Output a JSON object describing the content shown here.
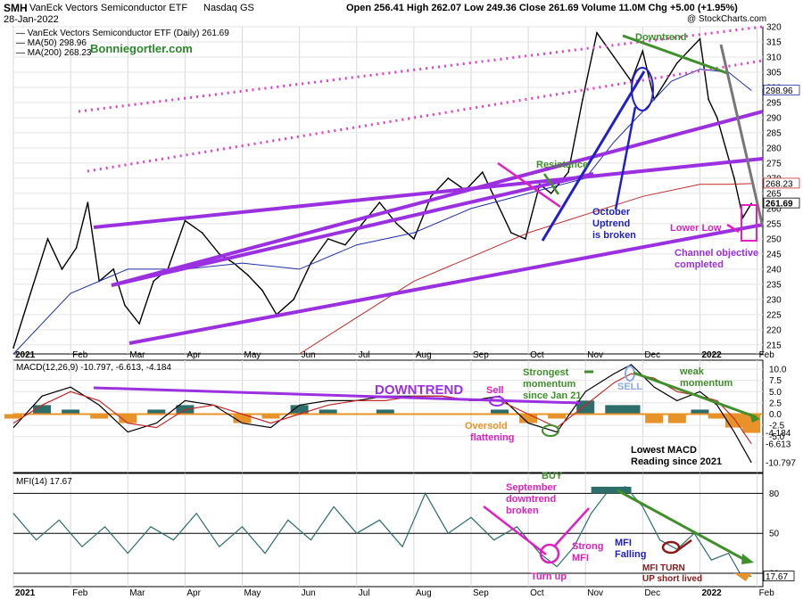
{
  "header": {
    "symbol": "SMH",
    "name": "VanEck Vectors Semiconductor ETF",
    "exchange": "Nasdaq GS",
    "date": "28-Jan-2022",
    "ohlc": "Open 256.41  High 262.07  Low 249.36  Close 261.69  Volume 11.0M  Chg +5.00 (+1.95%)",
    "watermark": "@ StockCharts.com",
    "legend_price": "VanEck Vectors Semiconductor ETF (Daily) 261.69",
    "legend_ma50": "MA(50) 298.96",
    "legend_ma200": "MA(200) 268.23",
    "site": "Bonniegortler.com",
    "macd_label": "MACD(12,26,9) -10.797, -6.613, -4.184",
    "mfi_label": "MFI(14) 17.67"
  },
  "colors": {
    "price": "#000000",
    "ma50": "#1f2fa8",
    "ma200": "#c22a2a",
    "channel": "#9b30e0",
    "dotted": "#e040c8",
    "annot_green": "#3f8f2a",
    "annot_magenta": "#e020c0",
    "annot_blue": "#2020c8",
    "hist_pos": "#2e6e6a",
    "hist_neg": "#e8932a",
    "mfi": "#2e6e6a"
  },
  "chart_data": [
    {
      "type": "line",
      "title": "VanEck Vectors Semiconductor ETF (Daily)",
      "ylim": [
        212,
        320
      ],
      "y_ticks": [
        215,
        220,
        225,
        230,
        235,
        240,
        245,
        250,
        255,
        260,
        265,
        270,
        275,
        280,
        285,
        290,
        295,
        300,
        305,
        310,
        315,
        320
      ],
      "x_labels": [
        "2021",
        "Feb",
        "Mar",
        "Apr",
        "May",
        "Jun",
        "Jul",
        "Aug",
        "Sep",
        "Oct",
        "Nov",
        "Dec",
        "2022",
        "Feb"
      ],
      "x_label_months": [
        0,
        1,
        2,
        3,
        4,
        5,
        6,
        7,
        8,
        9,
        10,
        11,
        12,
        13
      ],
      "series": [
        {
          "name": "SMH",
          "x": [
            0,
            0.3,
            0.6,
            0.85,
            1.1,
            1.3,
            1.5,
            1.75,
            1.95,
            2.2,
            2.45,
            2.7,
            3.0,
            3.3,
            3.6,
            3.85,
            4.1,
            4.35,
            4.6,
            4.9,
            5.2,
            5.5,
            5.8,
            6.1,
            6.4,
            6.7,
            7.0,
            7.3,
            7.6,
            7.9,
            8.2,
            8.45,
            8.7,
            8.95,
            9.2,
            9.4,
            9.7,
            9.95,
            10.2,
            10.5,
            10.8,
            11.0,
            11.2,
            11.4,
            11.6,
            11.8,
            12.0,
            12.15,
            12.3,
            12.45,
            12.6,
            12.75,
            12.9
          ],
          "values": [
            214,
            232,
            250,
            240,
            247,
            262,
            236,
            240,
            228,
            222,
            236,
            240,
            256,
            252,
            245,
            242,
            238,
            233,
            225,
            230,
            242,
            250,
            248,
            255,
            262,
            255,
            250,
            264,
            270,
            266,
            272,
            262,
            252,
            250,
            268,
            265,
            272,
            296,
            318,
            310,
            302,
            312,
            296,
            302,
            308,
            312,
            316,
            296,
            290,
            280,
            270,
            257,
            261.69
          ]
        },
        {
          "name": "MA(50)",
          "x": [
            0,
            1,
            2,
            3,
            4,
            5,
            6,
            7,
            8,
            9,
            10,
            10.5,
            11,
            11.5,
            12,
            12.5,
            12.9
          ],
          "values": [
            212,
            232,
            240,
            240,
            242,
            240,
            248,
            252,
            260,
            265,
            270,
            282,
            292,
            302,
            306,
            305,
            298.96
          ]
        },
        {
          "name": "MA(200)",
          "x": [
            5,
            6,
            7,
            8,
            9,
            10,
            11,
            12,
            12.5,
            12.9
          ],
          "values": [
            212,
            224,
            236,
            244,
            252,
            258,
            264,
            268,
            268,
            268.23
          ]
        }
      ],
      "price_labels": [
        "298.96",
        "268.23",
        "261.69"
      ]
    },
    {
      "type": "line",
      "title": "MACD(12,26,9)",
      "ylim": [
        -13,
        12
      ],
      "y_ticks": [
        "10.0",
        "7.5",
        "5.0",
        "2.5",
        "0.0",
        "-2.5",
        "-5.0"
      ],
      "y_tick_values": [
        10,
        7.5,
        5,
        2.5,
        0,
        -2.5,
        -5
      ],
      "x_labels": [
        "2021",
        "Feb",
        "Mar",
        "Apr",
        "May",
        "Jun",
        "Jul",
        "Aug",
        "Sep",
        "Oct",
        "Nov",
        "Dec",
        "2022",
        "Feb"
      ],
      "x_label_months": [
        0,
        1,
        2,
        3,
        4,
        5,
        6,
        7,
        8,
        9,
        10,
        11,
        12,
        13
      ],
      "series": [
        {
          "name": "MACD",
          "x": [
            0,
            0.5,
            1,
            1.5,
            2,
            2.5,
            3,
            3.5,
            4,
            4.5,
            5,
            5.5,
            6,
            6.5,
            7,
            7.5,
            8,
            8.5,
            9,
            9.5,
            10,
            10.5,
            10.8,
            11.2,
            11.6,
            12,
            12.3,
            12.6,
            12.9
          ],
          "values": [
            -3,
            4,
            6,
            2,
            -4,
            -2,
            3,
            2,
            -2,
            -3,
            2,
            3,
            3,
            4,
            4,
            4,
            3,
            4,
            -2,
            -4,
            5,
            9,
            11,
            6,
            3,
            5,
            2,
            -4,
            -10.797
          ]
        },
        {
          "name": "Signal",
          "x": [
            0,
            0.5,
            1,
            1.5,
            2,
            2.5,
            3,
            3.5,
            4,
            4.5,
            5,
            5.5,
            6,
            6.5,
            7,
            7.5,
            8,
            8.5,
            9,
            9.5,
            10,
            10.5,
            10.8,
            11.2,
            11.6,
            12,
            12.3,
            12.6,
            12.9
          ],
          "values": [
            -2,
            2,
            5,
            3,
            -2,
            -3,
            1,
            2,
            0,
            -2,
            0,
            2,
            3,
            3,
            4,
            4,
            3,
            3,
            0,
            -3,
            2,
            7,
            9,
            8,
            5,
            4,
            3,
            -1,
            -6.613
          ]
        }
      ],
      "histogram": {
        "x": [
          0,
          0.5,
          1,
          1.5,
          2,
          2.5,
          3,
          3.5,
          4,
          4.5,
          5,
          5.5,
          6,
          6.5,
          7,
          7.5,
          8,
          8.5,
          9,
          9.5,
          10,
          10.5,
          10.8,
          11.2,
          11.6,
          12,
          12.3,
          12.6,
          12.9
        ],
        "values": [
          -1,
          2,
          1,
          -1,
          -2,
          1,
          2,
          0,
          -2,
          -1,
          2,
          1,
          0,
          1,
          0,
          0,
          0,
          1,
          -2,
          -1,
          3,
          2,
          2,
          -2,
          -2,
          1,
          -1,
          -3,
          -4.184
        ]
      },
      "value_labels": [
        "-4.184",
        "-6.613",
        "-10.797"
      ]
    },
    {
      "type": "line",
      "title": "MFI(14)",
      "ylim": [
        10,
        95
      ],
      "y_ticks": [
        "80",
        "50",
        "20"
      ],
      "y_tick_values": [
        80,
        50,
        20
      ],
      "x_labels": [
        "2021",
        "Feb",
        "Mar",
        "Apr",
        "May",
        "Jun",
        "Jul",
        "Aug",
        "Sep",
        "Oct",
        "Nov",
        "Dec",
        "2022",
        "Feb"
      ],
      "x_label_months": [
        0,
        1,
        2,
        3,
        4,
        5,
        6,
        7,
        8,
        9,
        10,
        11,
        12,
        13
      ],
      "series": [
        {
          "name": "MFI",
          "x": [
            0,
            0.4,
            0.8,
            1.2,
            1.6,
            2.0,
            2.4,
            2.8,
            3.2,
            3.6,
            4.0,
            4.4,
            4.8,
            5.2,
            5.6,
            6.0,
            6.4,
            6.8,
            7.2,
            7.6,
            8.0,
            8.4,
            8.8,
            9.2,
            9.5,
            9.8,
            10.1,
            10.4,
            10.7,
            11.0,
            11.3,
            11.6,
            11.9,
            12.2,
            12.5,
            12.7,
            12.9
          ],
          "values": [
            65,
            45,
            60,
            40,
            55,
            35,
            55,
            45,
            65,
            40,
            55,
            35,
            60,
            45,
            70,
            50,
            60,
            40,
            80,
            50,
            62,
            45,
            55,
            35,
            25,
            40,
            65,
            82,
            85,
            70,
            45,
            38,
            50,
            30,
            35,
            20,
            17.67
          ]
        }
      ],
      "value_labels": [
        "17.67"
      ]
    }
  ],
  "annotations": {
    "downtrend_top": "Downtrend",
    "resistance": "Resistance",
    "october_uptrend": [
      "October",
      "Uptrend",
      "is broken"
    ],
    "lower_low": "Lower Low",
    "channel_objective": [
      "Channel objective",
      "completed"
    ],
    "downtrend_macd": "DOWNTREND",
    "sell1": "Sell",
    "oversold": [
      "Oversold",
      "flattening"
    ],
    "strongest": [
      "Strongest",
      "momentum",
      "since Jan 21"
    ],
    "sell2": "SELL",
    "weak": [
      "weak",
      "momentum"
    ],
    "lowest_macd": [
      "Lowest MACD",
      "Reading since 2021"
    ],
    "buy": "BUY",
    "sept_down": [
      "September",
      "downtrend",
      "broken"
    ],
    "strong_mfi": [
      "Strong",
      "MFI"
    ],
    "turn_up": "Turn up",
    "mfi_falling": [
      "MFI",
      "Falling"
    ],
    "mfi_turn": [
      "MFI TURN",
      "UP short lived"
    ]
  }
}
